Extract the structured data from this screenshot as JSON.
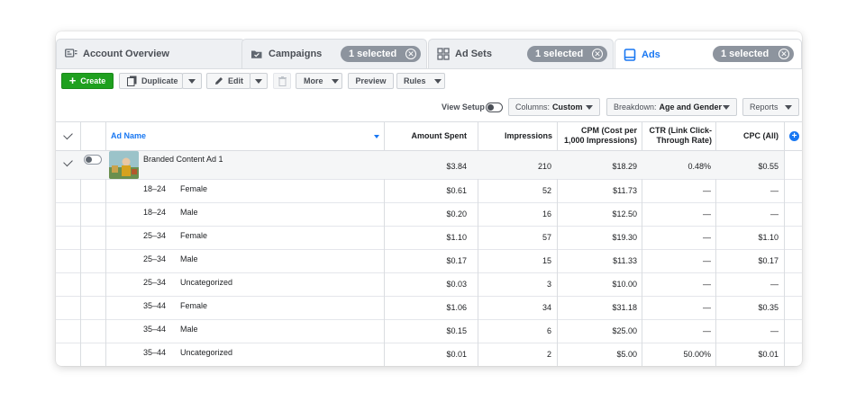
{
  "tabs": {
    "account_overview": {
      "label": "Account Overview",
      "icon": "account-overview-icon"
    },
    "campaigns": {
      "label": "Campaigns",
      "icon": "campaign-folder-icon",
      "selected": "1 selected"
    },
    "ad_sets": {
      "label": "Ad Sets",
      "icon": "grid-icon",
      "selected": "1 selected"
    },
    "ads": {
      "label": "Ads",
      "icon": "ad-icon",
      "selected": "1 selected"
    }
  },
  "toolbar": {
    "create": "Create",
    "duplicate": "Duplicate",
    "edit": "Edit",
    "more": "More",
    "preview": "Preview",
    "rules": "Rules"
  },
  "options": {
    "view_setup": "View Setup",
    "columns_label": "Columns:",
    "columns_value": "Custom",
    "breakdown_label": "Breakdown:",
    "breakdown_value": "Age and Gender",
    "reports": "Reports"
  },
  "table": {
    "headers": {
      "ad_name": "Ad Name",
      "amount_spent": "Amount Spent",
      "impressions": "Impressions",
      "cpm_line1": "CPM (Cost per",
      "cpm_line2": "1,000 Impressions)",
      "ctr_line1": "CTR (Link Click-",
      "ctr_line2": "Through Rate)",
      "cpc": "CPC (All)"
    },
    "main_row": {
      "name": "Branded Content Ad 1",
      "amount_spent": "$3.84",
      "impressions": "210",
      "cpm": "$18.29",
      "ctr": "0.48%",
      "cpc": "$0.55"
    },
    "rows": [
      {
        "age": "18–24",
        "gender": "Female",
        "amount_spent": "$0.61",
        "impressions": "52",
        "cpm": "$11.73",
        "ctr": "—",
        "cpc": "—"
      },
      {
        "age": "18–24",
        "gender": "Male",
        "amount_spent": "$0.20",
        "impressions": "16",
        "cpm": "$12.50",
        "ctr": "—",
        "cpc": "—"
      },
      {
        "age": "25–34",
        "gender": "Female",
        "amount_spent": "$1.10",
        "impressions": "57",
        "cpm": "$19.30",
        "ctr": "—",
        "cpc": "$1.10"
      },
      {
        "age": "25–34",
        "gender": "Male",
        "amount_spent": "$0.17",
        "impressions": "15",
        "cpm": "$11.33",
        "ctr": "—",
        "cpc": "$0.17"
      },
      {
        "age": "25–34",
        "gender": "Uncategorized",
        "amount_spent": "$0.03",
        "impressions": "3",
        "cpm": "$10.00",
        "ctr": "—",
        "cpc": "—"
      },
      {
        "age": "35–44",
        "gender": "Female",
        "amount_spent": "$1.06",
        "impressions": "34",
        "cpm": "$31.18",
        "ctr": "—",
        "cpc": "$0.35"
      },
      {
        "age": "35–44",
        "gender": "Male",
        "amount_spent": "$0.15",
        "impressions": "6",
        "cpm": "$25.00",
        "ctr": "—",
        "cpc": "—"
      },
      {
        "age": "35–44",
        "gender": "Uncategorized",
        "amount_spent": "$0.01",
        "impressions": "2",
        "cpm": "$5.00",
        "ctr": "50.00%",
        "cpc": "$0.01"
      }
    ]
  },
  "colors": {
    "accent": "#1877f2",
    "create_green": "#1fa01f",
    "pill_gray": "#8d949e"
  }
}
